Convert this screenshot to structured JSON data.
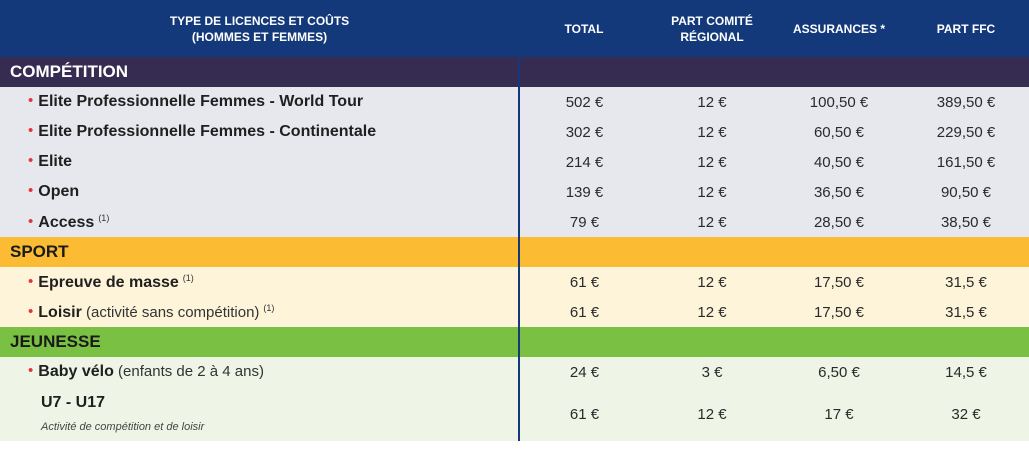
{
  "header": {
    "col_type": [
      "TYPE DE LICENCES ET COÛTS",
      "(HOMMES ET FEMMES)"
    ],
    "col_total": "TOTAL",
    "col_comite": [
      "PART COMITÉ",
      "RÉGIONAL"
    ],
    "col_assurances": "ASSURANCES *",
    "col_ffc": "PART FFC"
  },
  "sections": {
    "competition": {
      "title": "COMPÉTITION",
      "rows": [
        {
          "name": "Elite Professionnelle Femmes - World Tour",
          "total": "502 €",
          "comite": "12 €",
          "assurances": "100,50 €",
          "ffc": "389,50 €"
        },
        {
          "name": "Elite Professionnelle Femmes - Continentale",
          "total": "302 €",
          "comite": "12 €",
          "assurances": "60,50 €",
          "ffc": "229,50 €"
        },
        {
          "name": "Elite",
          "total": "214 €",
          "comite": "12 €",
          "assurances": "40,50 €",
          "ffc": "161,50 €"
        },
        {
          "name": "Open",
          "total": "139 €",
          "comite": "12 €",
          "assurances": "36,50 €",
          "ffc": "90,50 €"
        },
        {
          "name": "Access",
          "note": "(1)",
          "total": "79 €",
          "comite": "12 €",
          "assurances": "28,50 €",
          "ffc": "38,50 €"
        }
      ]
    },
    "sport": {
      "title": "SPORT",
      "rows": [
        {
          "name": "Epreuve de masse",
          "note": "(1)",
          "total": "61 €",
          "comite": "12 €",
          "assurances": "17,50 €",
          "ffc": "31,5 €"
        },
        {
          "name": "Loisir",
          "paren": "(activité sans compétition)",
          "note": "(1)",
          "total": "61 €",
          "comite": "12 €",
          "assurances": "17,50 €",
          "ffc": "31,5 €"
        }
      ]
    },
    "jeunesse": {
      "title": "JEUNESSE",
      "rows": [
        {
          "name": "Baby vélo",
          "paren": "(enfants de 2 à 4 ans)",
          "total": "24 €",
          "comite": "3 €",
          "assurances": "6,50 €",
          "ffc": "14,5 €"
        },
        {
          "name": "U7 - U17",
          "sub": "Activité de compétition et de loisir",
          "total": "61 €",
          "comite": "12 €",
          "assurances": "17 €",
          "ffc": "32 €"
        }
      ]
    }
  }
}
